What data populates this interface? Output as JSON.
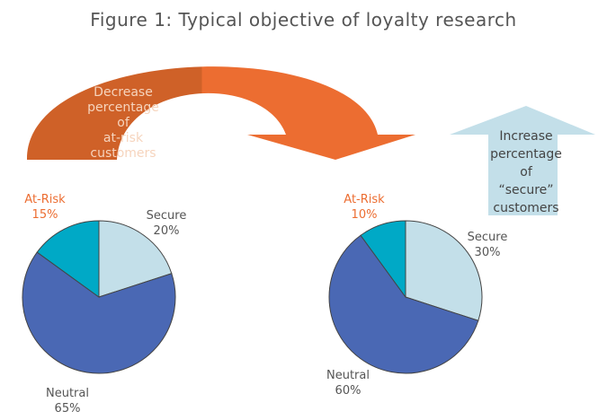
{
  "title": "Figure 1: Typical objective of loyalty research",
  "arrows": {
    "decrease_text": "Decrease\npercentage\nof\nat-risk\ncustomers",
    "increase_text": "Increase\npercentage\nof\n“secure”\ncustomers",
    "decrease_color": "#ec6d31",
    "decrease_dark_color": "#cf6128",
    "increase_color": "#c3dfe9"
  },
  "colors": {
    "Secure": "#c3dfe9",
    "Neutral": "#4a68b4",
    "At-Risk": "#00a9c6",
    "at_risk_label": "#ec6d31",
    "label": "#555555"
  },
  "chart_data": [
    {
      "type": "pie",
      "categories": [
        "Secure",
        "Neutral",
        "At-Risk"
      ],
      "values": [
        20,
        65,
        15
      ],
      "labels": {
        "Secure": "Secure\n20%",
        "Neutral": "Neutral\n65%",
        "At-Risk": "At-Risk\n15%"
      }
    },
    {
      "type": "pie",
      "categories": [
        "Secure",
        "Neutral",
        "At-Risk"
      ],
      "values": [
        30,
        60,
        10
      ],
      "labels": {
        "Secure": "Secure\n30%",
        "Neutral": "Neutral\n60%",
        "At-Risk": "At-Risk\n10%"
      }
    }
  ]
}
